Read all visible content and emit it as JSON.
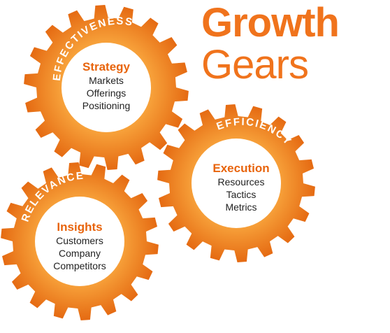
{
  "title": {
    "line1": "Growth",
    "line2": "Gears"
  },
  "colors": {
    "gear_light": "#f7a13a",
    "gear_dark": "#e56a12",
    "heading": "#e8640c",
    "title": "#f0731c",
    "ring_text": "#ffffff"
  },
  "gears": [
    {
      "ring_label": "EFFECTIVENESS",
      "heading": "Strategy",
      "items": [
        "Markets",
        "Offerings",
        "Positioning"
      ]
    },
    {
      "ring_label": "EFFICIENCY",
      "heading": "Execution",
      "items": [
        "Resources",
        "Tactics",
        "Metrics"
      ]
    },
    {
      "ring_label": "RELEVANCE",
      "heading": "Insights",
      "items": [
        "Customers",
        "Company",
        "Competitors"
      ]
    }
  ]
}
